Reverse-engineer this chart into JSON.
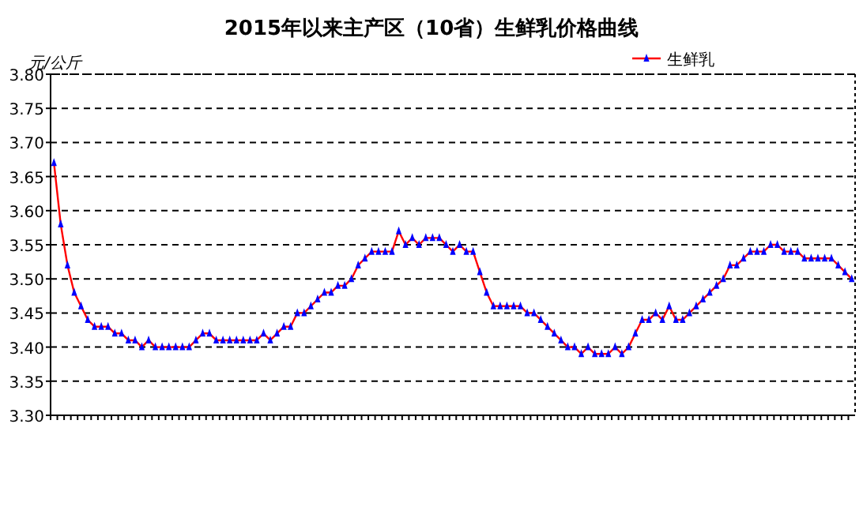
{
  "chart_data": {
    "type": "line",
    "title": "2015年以来主产区（10省）生鲜乳价格曲线",
    "ylabel": "元/公斤",
    "categories": [
      null,
      null,
      null,
      null,
      null,
      null,
      null,
      null,
      null,
      null,
      null,
      null,
      null,
      null,
      null,
      null,
      null,
      null,
      null,
      null,
      null,
      null,
      null,
      null,
      null,
      null,
      null,
      null,
      null,
      null,
      null,
      null,
      null,
      null,
      null,
      null,
      null,
      null,
      null,
      null,
      null,
      null,
      null,
      null,
      null,
      null,
      null,
      null,
      null,
      null,
      null,
      null,
      null,
      null,
      null,
      null,
      null,
      null,
      null,
      null,
      null,
      null,
      null,
      null,
      null,
      null,
      null,
      null,
      null,
      null,
      null,
      null,
      null,
      null,
      null,
      null,
      null,
      null,
      null,
      null,
      null,
      null,
      null,
      null,
      null,
      null,
      null,
      null,
      null,
      null,
      null,
      null,
      null,
      null,
      null,
      null,
      null,
      null,
      null,
      null,
      null,
      null,
      null,
      null,
      null,
      null,
      null,
      null,
      null,
      null,
      null,
      null,
      null,
      null,
      null,
      null,
      null,
      null,
      null
    ],
    "series": [
      {
        "name": "生鲜乳",
        "color": "#0000ff",
        "values": [
          3.67,
          3.58,
          3.52,
          3.48,
          3.46,
          3.44,
          3.43,
          3.43,
          3.43,
          3.42,
          3.42,
          3.41,
          3.41,
          3.4,
          3.41,
          3.4,
          3.4,
          3.4,
          3.4,
          3.4,
          3.4,
          3.41,
          3.42,
          3.42,
          3.41,
          3.41,
          3.41,
          3.41,
          3.41,
          3.41,
          3.41,
          3.42,
          3.41,
          3.42,
          3.43,
          3.43,
          3.45,
          3.45,
          3.46,
          3.47,
          3.48,
          3.48,
          3.49,
          3.49,
          3.5,
          3.52,
          3.53,
          3.54,
          3.54,
          3.54,
          3.54,
          3.57,
          3.55,
          3.56,
          3.55,
          3.56,
          3.56,
          3.56,
          3.55,
          3.54,
          3.55,
          3.54,
          3.54,
          3.51,
          3.48,
          3.46,
          3.46,
          3.46,
          3.46,
          3.46,
          3.45,
          3.45,
          3.44,
          3.43,
          3.42,
          3.41,
          3.4,
          3.4,
          3.39,
          3.4,
          3.39,
          3.39,
          3.39,
          3.4,
          3.39,
          3.4,
          3.42,
          3.44,
          3.44,
          3.45,
          3.44,
          3.46,
          3.44,
          3.44,
          3.45,
          3.46,
          3.47,
          3.48,
          3.49,
          3.5,
          3.52,
          3.52,
          3.53,
          3.54,
          3.54,
          3.54,
          3.55,
          3.55,
          3.54,
          3.54,
          3.54,
          3.53,
          3.53,
          3.53,
          3.53,
          3.53,
          3.52,
          3.51,
          3.5
        ]
      }
    ],
    "ylim": [
      3.3,
      3.8
    ],
    "yticks": [
      {
        "value": 3.3,
        "label": "3.30"
      },
      {
        "value": 3.35,
        "label": "3.35"
      },
      {
        "value": 3.4,
        "label": "3.40"
      },
      {
        "value": 3.45,
        "label": "3.45"
      },
      {
        "value": 3.5,
        "label": "3.50"
      },
      {
        "value": 3.55,
        "label": "3.55"
      },
      {
        "value": 3.6,
        "label": "3.60"
      },
      {
        "value": 3.65,
        "label": "3.65"
      },
      {
        "value": 3.7,
        "label": "3.70"
      },
      {
        "value": 3.75,
        "label": "3.75"
      },
      {
        "value": 3.8,
        "label": "3.80"
      }
    ],
    "grid": "y",
    "legend": "top right",
    "marker": "triangle",
    "line_style": "solid"
  }
}
